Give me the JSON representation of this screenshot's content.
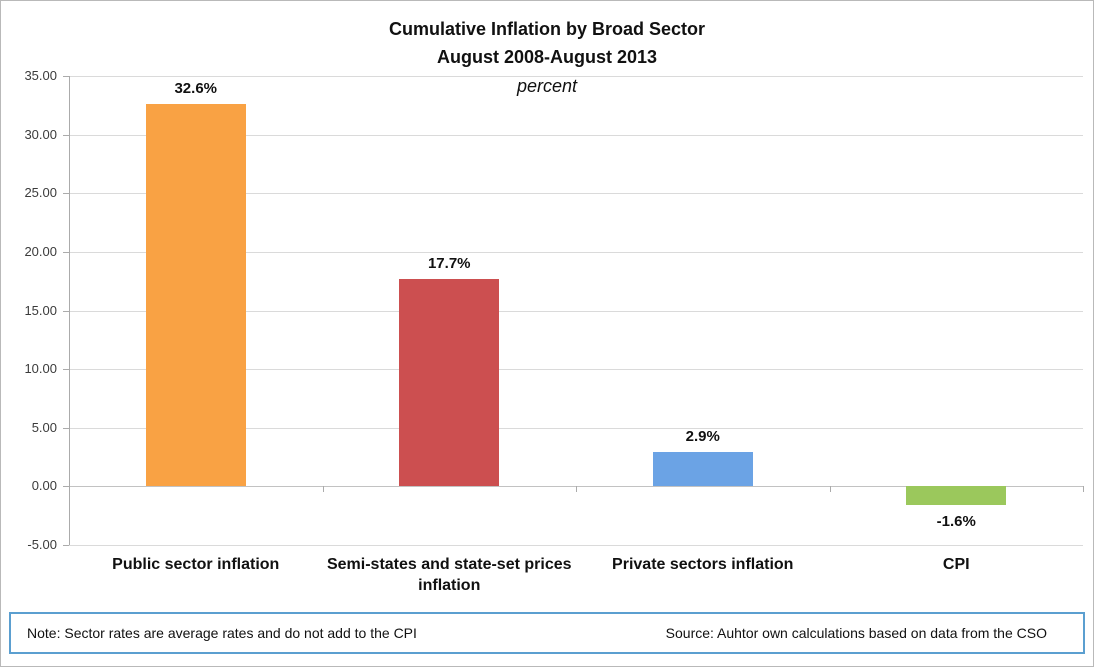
{
  "title": {
    "line1": "Cumulative Inflation by Broad Sector",
    "line2": "August 2008-August 2013",
    "subtitle": "percent"
  },
  "chart_data": {
    "type": "bar",
    "title": "Cumulative Inflation by Broad Sector August 2008-August 2013",
    "units": "percent",
    "categories": [
      "Public sector inflation",
      "Semi-states and state-set prices inflation",
      "Private sectors inflation",
      "CPI"
    ],
    "values": [
      32.6,
      17.7,
      2.9,
      -1.6
    ],
    "value_labels": [
      "32.6%",
      "17.7%",
      "2.9%",
      "-1.6%"
    ],
    "colors": [
      "#F9A244",
      "#CC4F50",
      "#6BA3E5",
      "#9BC85C"
    ],
    "ylim": [
      -5,
      35
    ],
    "yticks": [
      "35.00",
      "30.00",
      "25.00",
      "20.00",
      "15.00",
      "10.00",
      "5.00",
      "0.00",
      "-5.00"
    ],
    "grid": true,
    "legend": false
  },
  "footer": {
    "note": "Note: Sector rates are average rates and do not add to the CPI",
    "source": "Source: Auhtor own calculations based on data from the CSO"
  }
}
